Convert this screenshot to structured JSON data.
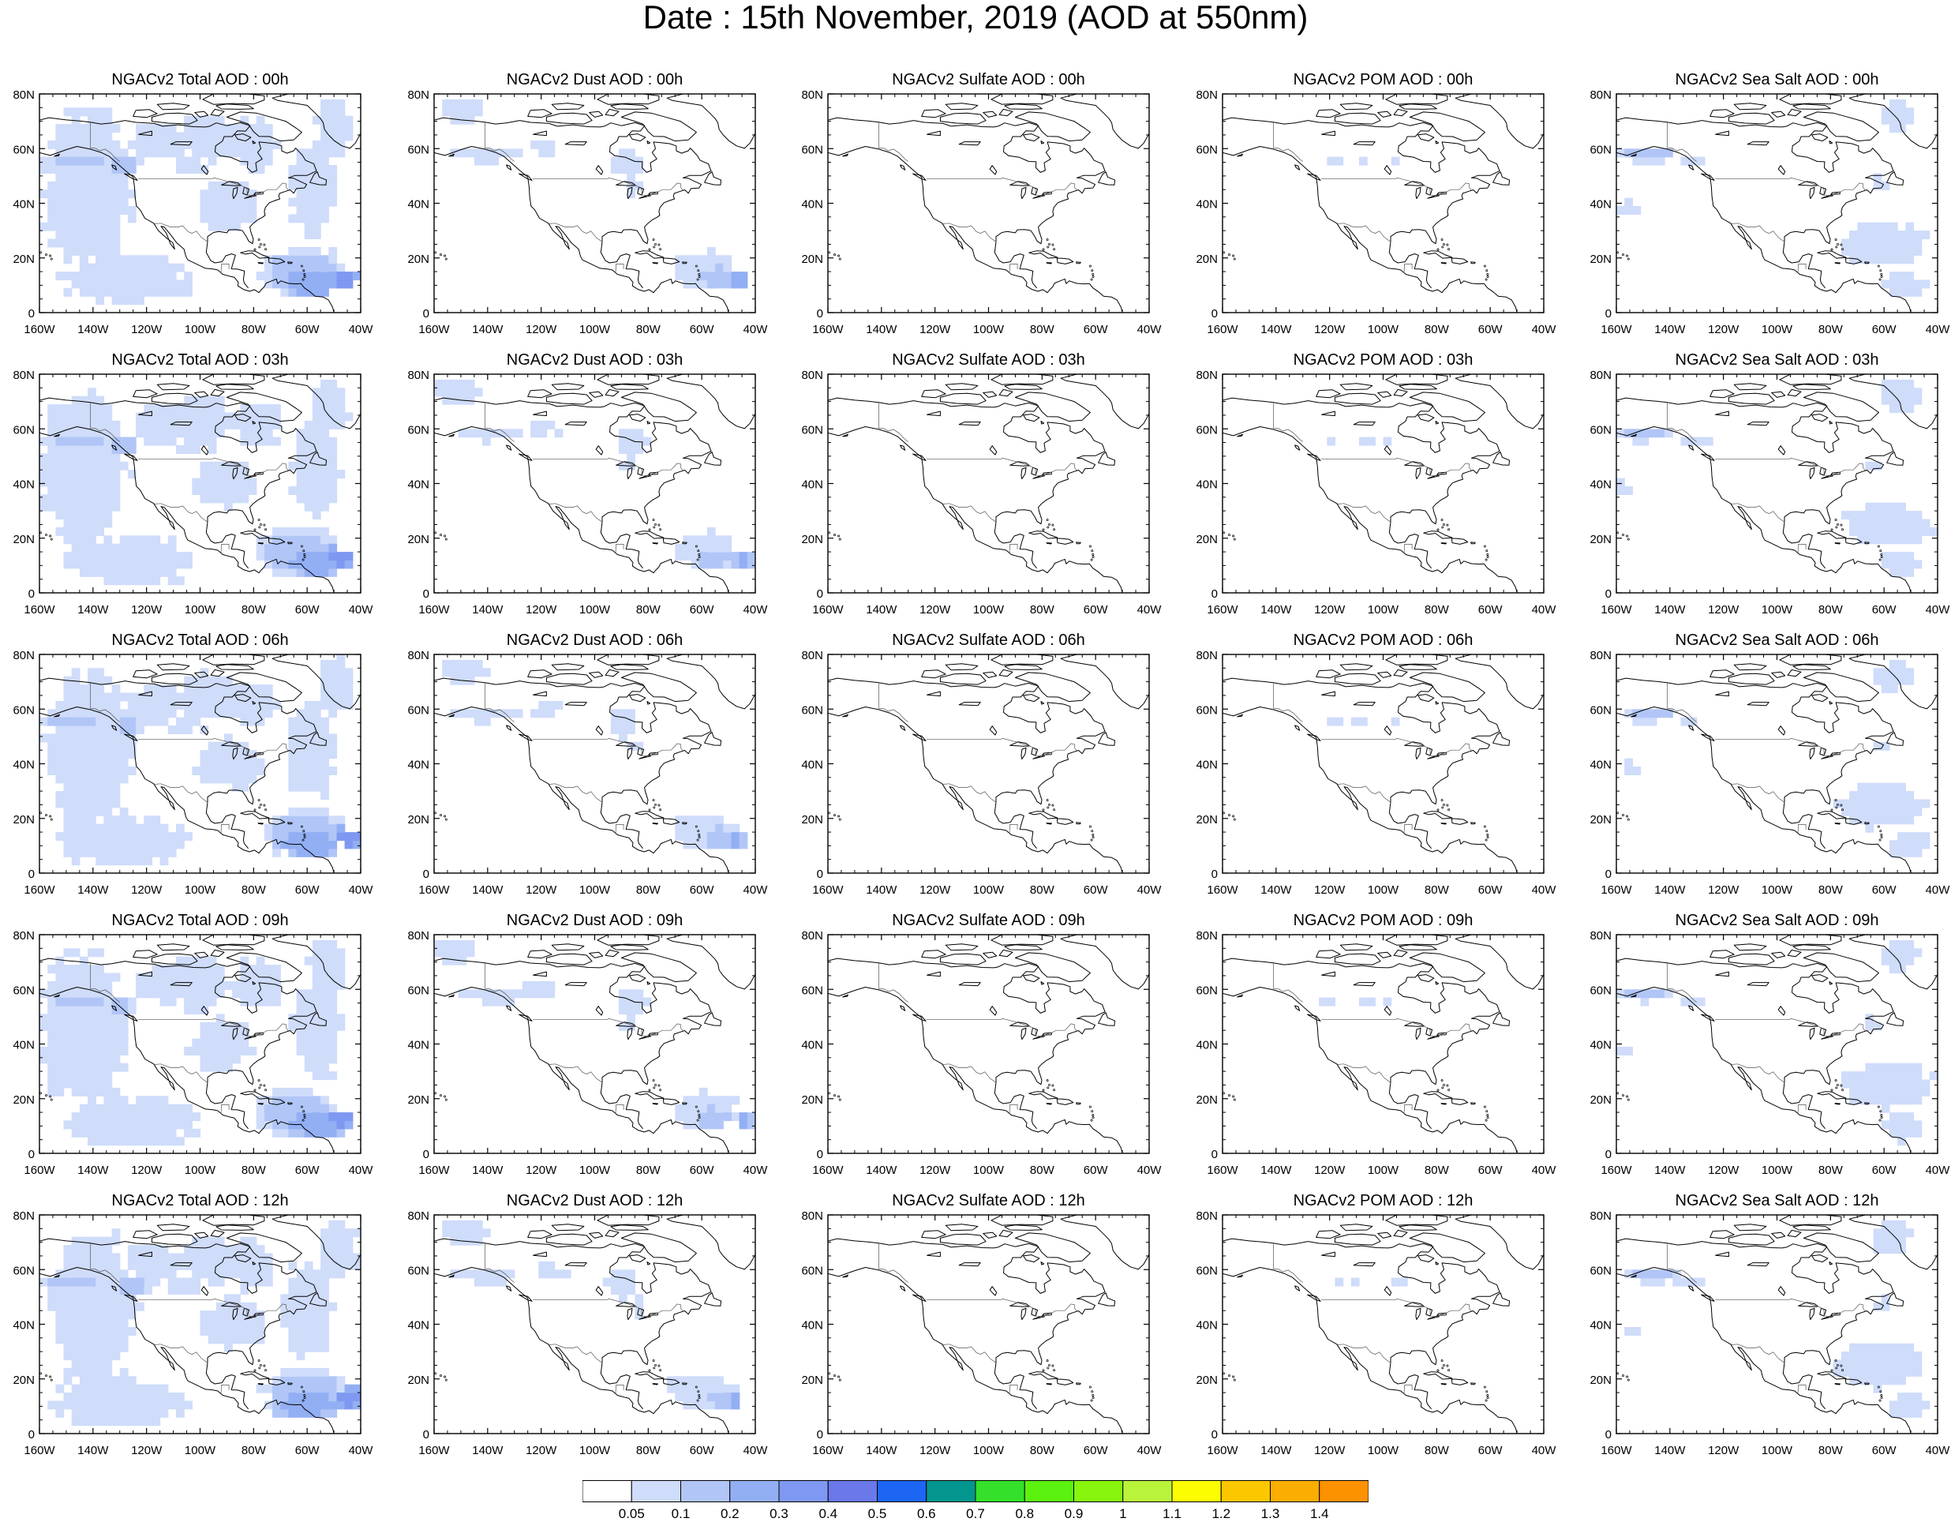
{
  "title": "Date : 15th November, 2019 (AOD at 550nm)",
  "lat_ticks": [
    "80N",
    "60N",
    "40N",
    "20N",
    "0"
  ],
  "lon_ticks": [
    "160W",
    "140W",
    "120W",
    "100W",
    "80W",
    "60W",
    "40W"
  ],
  "shade_colors": [
    "#ffffff",
    "#cfdcfa",
    "#b1c6f7",
    "#93aff4",
    "#7f98f1",
    "#6a78ea",
    "#1d65f3",
    "#03968f",
    "#35e02a",
    "#5cf20f",
    "#88f50f",
    "#b9f43a",
    "#fbfd00",
    "#fdc700",
    "#fbae01",
    "#fc9200",
    "#f87204",
    "#f6241a"
  ],
  "rows": [
    {
      "hour": "00h",
      "panels": [
        {
          "id": "total",
          "title": "NGACv2 Total AOD : 00h"
        },
        {
          "id": "dust",
          "title": "NGACv2 Dust AOD : 00h"
        },
        {
          "id": "sulfate",
          "title": "NGACv2 Sulfate AOD : 00h"
        },
        {
          "id": "pom",
          "title": "NGACv2 POM AOD : 00h"
        },
        {
          "id": "seasalt",
          "title": "NGACv2 Sea Salt AOD : 00h"
        }
      ]
    },
    {
      "hour": "03h",
      "panels": [
        {
          "id": "total",
          "title": "NGACv2 Total AOD : 03h"
        },
        {
          "id": "dust",
          "title": "NGACv2 Dust AOD : 03h"
        },
        {
          "id": "sulfate",
          "title": "NGACv2 Sulfate AOD : 03h"
        },
        {
          "id": "pom",
          "title": "NGACv2 POM AOD : 03h"
        },
        {
          "id": "seasalt",
          "title": "NGACv2 Sea Salt AOD : 03h"
        }
      ]
    },
    {
      "hour": "06h",
      "panels": [
        {
          "id": "total",
          "title": "NGACv2 Total AOD : 06h"
        },
        {
          "id": "dust",
          "title": "NGACv2 Dust AOD : 06h"
        },
        {
          "id": "sulfate",
          "title": "NGACv2 Sulfate AOD : 06h"
        },
        {
          "id": "pom",
          "title": "NGACv2 POM AOD : 06h"
        },
        {
          "id": "seasalt",
          "title": "NGACv2 Sea Salt AOD : 06h"
        }
      ]
    },
    {
      "hour": "09h",
      "panels": [
        {
          "id": "total",
          "title": "NGACv2 Total AOD : 09h"
        },
        {
          "id": "dust",
          "title": "NGACv2 Dust AOD : 09h"
        },
        {
          "id": "sulfate",
          "title": "NGACv2 Sulfate AOD : 09h"
        },
        {
          "id": "pom",
          "title": "NGACv2 POM AOD : 09h"
        },
        {
          "id": "seasalt",
          "title": "NGACv2 Sea Salt  AOD : 09h"
        }
      ]
    },
    {
      "hour": "12h",
      "panels": [
        {
          "id": "total",
          "title": "NGACv2 Total AOD  : 12h"
        },
        {
          "id": "dust",
          "title": "NGACv2 Dust AOD : 12h"
        },
        {
          "id": "sulfate",
          "title": "NGACv2 Sulfate AOD : 12h"
        },
        {
          "id": "pom",
          "title": "NGACv2 POM  AOD : 12h"
        },
        {
          "id": "seasalt",
          "title": "NGACv2 Sea Salt  AOD : 12h"
        }
      ]
    }
  ],
  "colorbar": {
    "labels": [
      "0.05",
      "0.1",
      "0.2",
      "0.3",
      "0.4",
      "0.5",
      "0.6",
      "0.7",
      "0.8",
      "0.9",
      "1",
      "1.1",
      "1.2",
      "1.3",
      "1.4"
    ],
    "colors": [
      "#ffffff",
      "#cfdcfa",
      "#b1c6f7",
      "#93aff4",
      "#7f98f1",
      "#6a78ea",
      "#1d65f3",
      "#03968f",
      "#35e02a",
      "#5cf20f",
      "#88f50f",
      "#b9f43a",
      "#fbfd00",
      "#fdc700",
      "#fbae01",
      "#fc9200"
    ]
  }
}
